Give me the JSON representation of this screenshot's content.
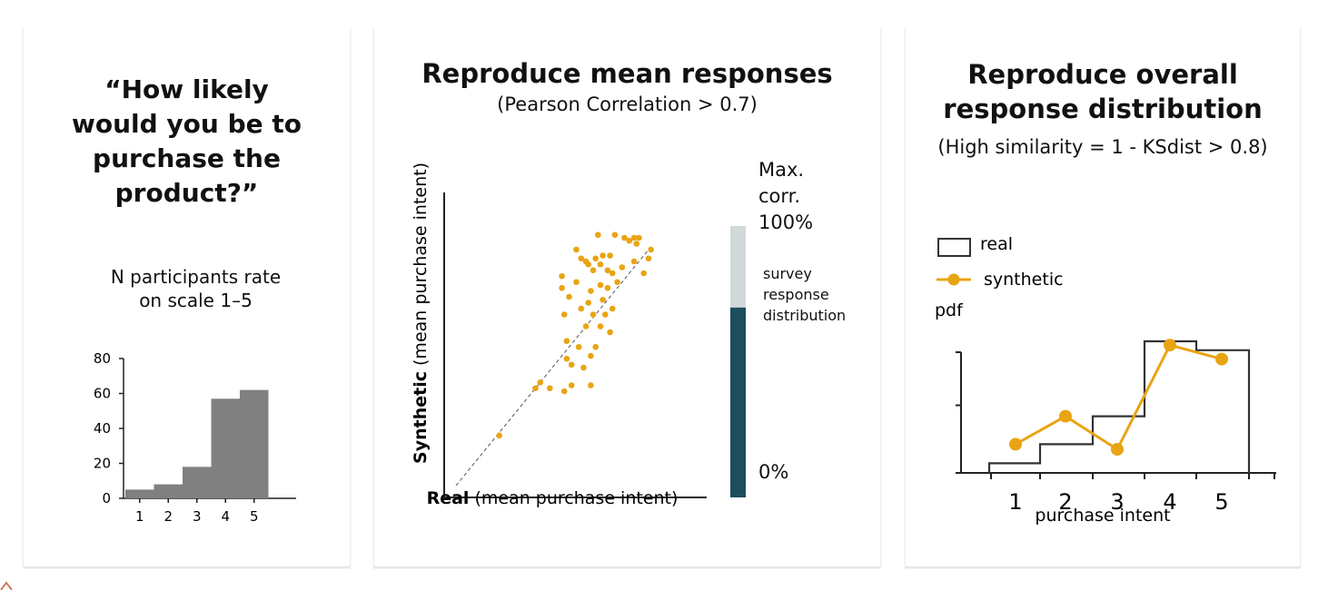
{
  "panels": {
    "p1": {
      "title": "“How likely\nwould you be to\npurchase the\nproduct?”",
      "caption": "N participants rate\non scale 1–5"
    },
    "p2": {
      "title": "Reproduce mean responses",
      "subtitle": "(Pearson Correlation > 0.7)",
      "ylabel_bold": "Synthetic",
      "ylabel_rest": " (mean purchase intent)",
      "xlabel_bold": "Real",
      "xlabel_rest": " (mean purchase intent)",
      "bar_top_label": "Max.\ncorr.\n100%",
      "bar_mid_label": "survey\nresponse\ndistribution",
      "bar_bottom_label": "0%"
    },
    "p3": {
      "title": "Reproduce overall\nresponse distribution",
      "subtitle": "(High similarity = 1 - KSdist > 0.8)",
      "ylabel": "pdf",
      "xlabel": "purchase intent"
    }
  },
  "colors": {
    "bar_gray": "#808080",
    "scatter_orange": "#E9A413",
    "teal": "#1E4D5C",
    "light_gray": "#D2D9DB",
    "axis": "#222222"
  },
  "chart_data": [
    {
      "type": "bar",
      "categories": [
        "1",
        "2",
        "3",
        "4",
        "5"
      ],
      "values": [
        5,
        8,
        18,
        57,
        62
      ],
      "ylim": [
        0,
        80
      ],
      "yticks": [
        0,
        20,
        40,
        60,
        80
      ]
    },
    {
      "type": "scatter",
      "title": "Reproduce mean responses",
      "subtitle": "(Pearson Correlation > 0.7)",
      "xlabel": "Real (mean purchase intent)",
      "ylabel": "Synthetic (mean purchase intent)",
      "xlim": [
        0,
        1
      ],
      "ylim": [
        0,
        1
      ],
      "reference_line": "y = x (dashed)",
      "points": [
        [
          0.18,
          0.17
        ],
        [
          0.33,
          0.33
        ],
        [
          0.35,
          0.35
        ],
        [
          0.39,
          0.33
        ],
        [
          0.45,
          0.32
        ],
        [
          0.48,
          0.34
        ],
        [
          0.56,
          0.34
        ],
        [
          0.46,
          0.43
        ],
        [
          0.48,
          0.41
        ],
        [
          0.53,
          0.4
        ],
        [
          0.46,
          0.49
        ],
        [
          0.51,
          0.47
        ],
        [
          0.56,
          0.44
        ],
        [
          0.58,
          0.47
        ],
        [
          0.64,
          0.52
        ],
        [
          0.6,
          0.54
        ],
        [
          0.54,
          0.54
        ],
        [
          0.57,
          0.58
        ],
        [
          0.62,
          0.58
        ],
        [
          0.45,
          0.58
        ],
        [
          0.52,
          0.6
        ],
        [
          0.55,
          0.62
        ],
        [
          0.61,
          0.63
        ],
        [
          0.65,
          0.6
        ],
        [
          0.6,
          0.68
        ],
        [
          0.47,
          0.64
        ],
        [
          0.44,
          0.67
        ],
        [
          0.44,
          0.71
        ],
        [
          0.5,
          0.69
        ],
        [
          0.56,
          0.66
        ],
        [
          0.63,
          0.67
        ],
        [
          0.67,
          0.69
        ],
        [
          0.57,
          0.73
        ],
        [
          0.55,
          0.75
        ],
        [
          0.6,
          0.75
        ],
        [
          0.63,
          0.73
        ],
        [
          0.65,
          0.72
        ],
        [
          0.52,
          0.77
        ],
        [
          0.58,
          0.77
        ],
        [
          0.61,
          0.78
        ],
        [
          0.64,
          0.78
        ],
        [
          0.5,
          0.8
        ],
        [
          0.54,
          0.76
        ],
        [
          0.69,
          0.74
        ],
        [
          0.78,
          0.72
        ],
        [
          0.74,
          0.76
        ],
        [
          0.8,
          0.77
        ],
        [
          0.81,
          0.8
        ],
        [
          0.66,
          0.85
        ],
        [
          0.7,
          0.84
        ],
        [
          0.72,
          0.83
        ],
        [
          0.74,
          0.84
        ],
        [
          0.76,
          0.84
        ],
        [
          0.59,
          0.85
        ],
        [
          0.75,
          0.82
        ]
      ]
    },
    {
      "type": "bar",
      "label": "Max. corr. 100% / survey response distribution / 0%",
      "ylim": [
        0,
        1
      ],
      "segments": [
        {
          "value": 0.7,
          "color": "#1E4D5C"
        },
        {
          "value": 0.3,
          "color": "#D2D9DB"
        }
      ]
    },
    {
      "type": "line",
      "xlabel": "purchase intent",
      "ylabel": "pdf",
      "categories": [
        "1",
        "2",
        "3",
        "4",
        "5"
      ],
      "series": [
        {
          "name": "real",
          "style": "step",
          "values": [
            0.04,
            0.19,
            0.41,
            1.0,
            0.93
          ]
        },
        {
          "name": "synthetic",
          "style": "line+marker",
          "values": [
            0.19,
            0.41,
            0.15,
            0.97,
            0.86
          ]
        }
      ],
      "legend": "top-left"
    }
  ]
}
